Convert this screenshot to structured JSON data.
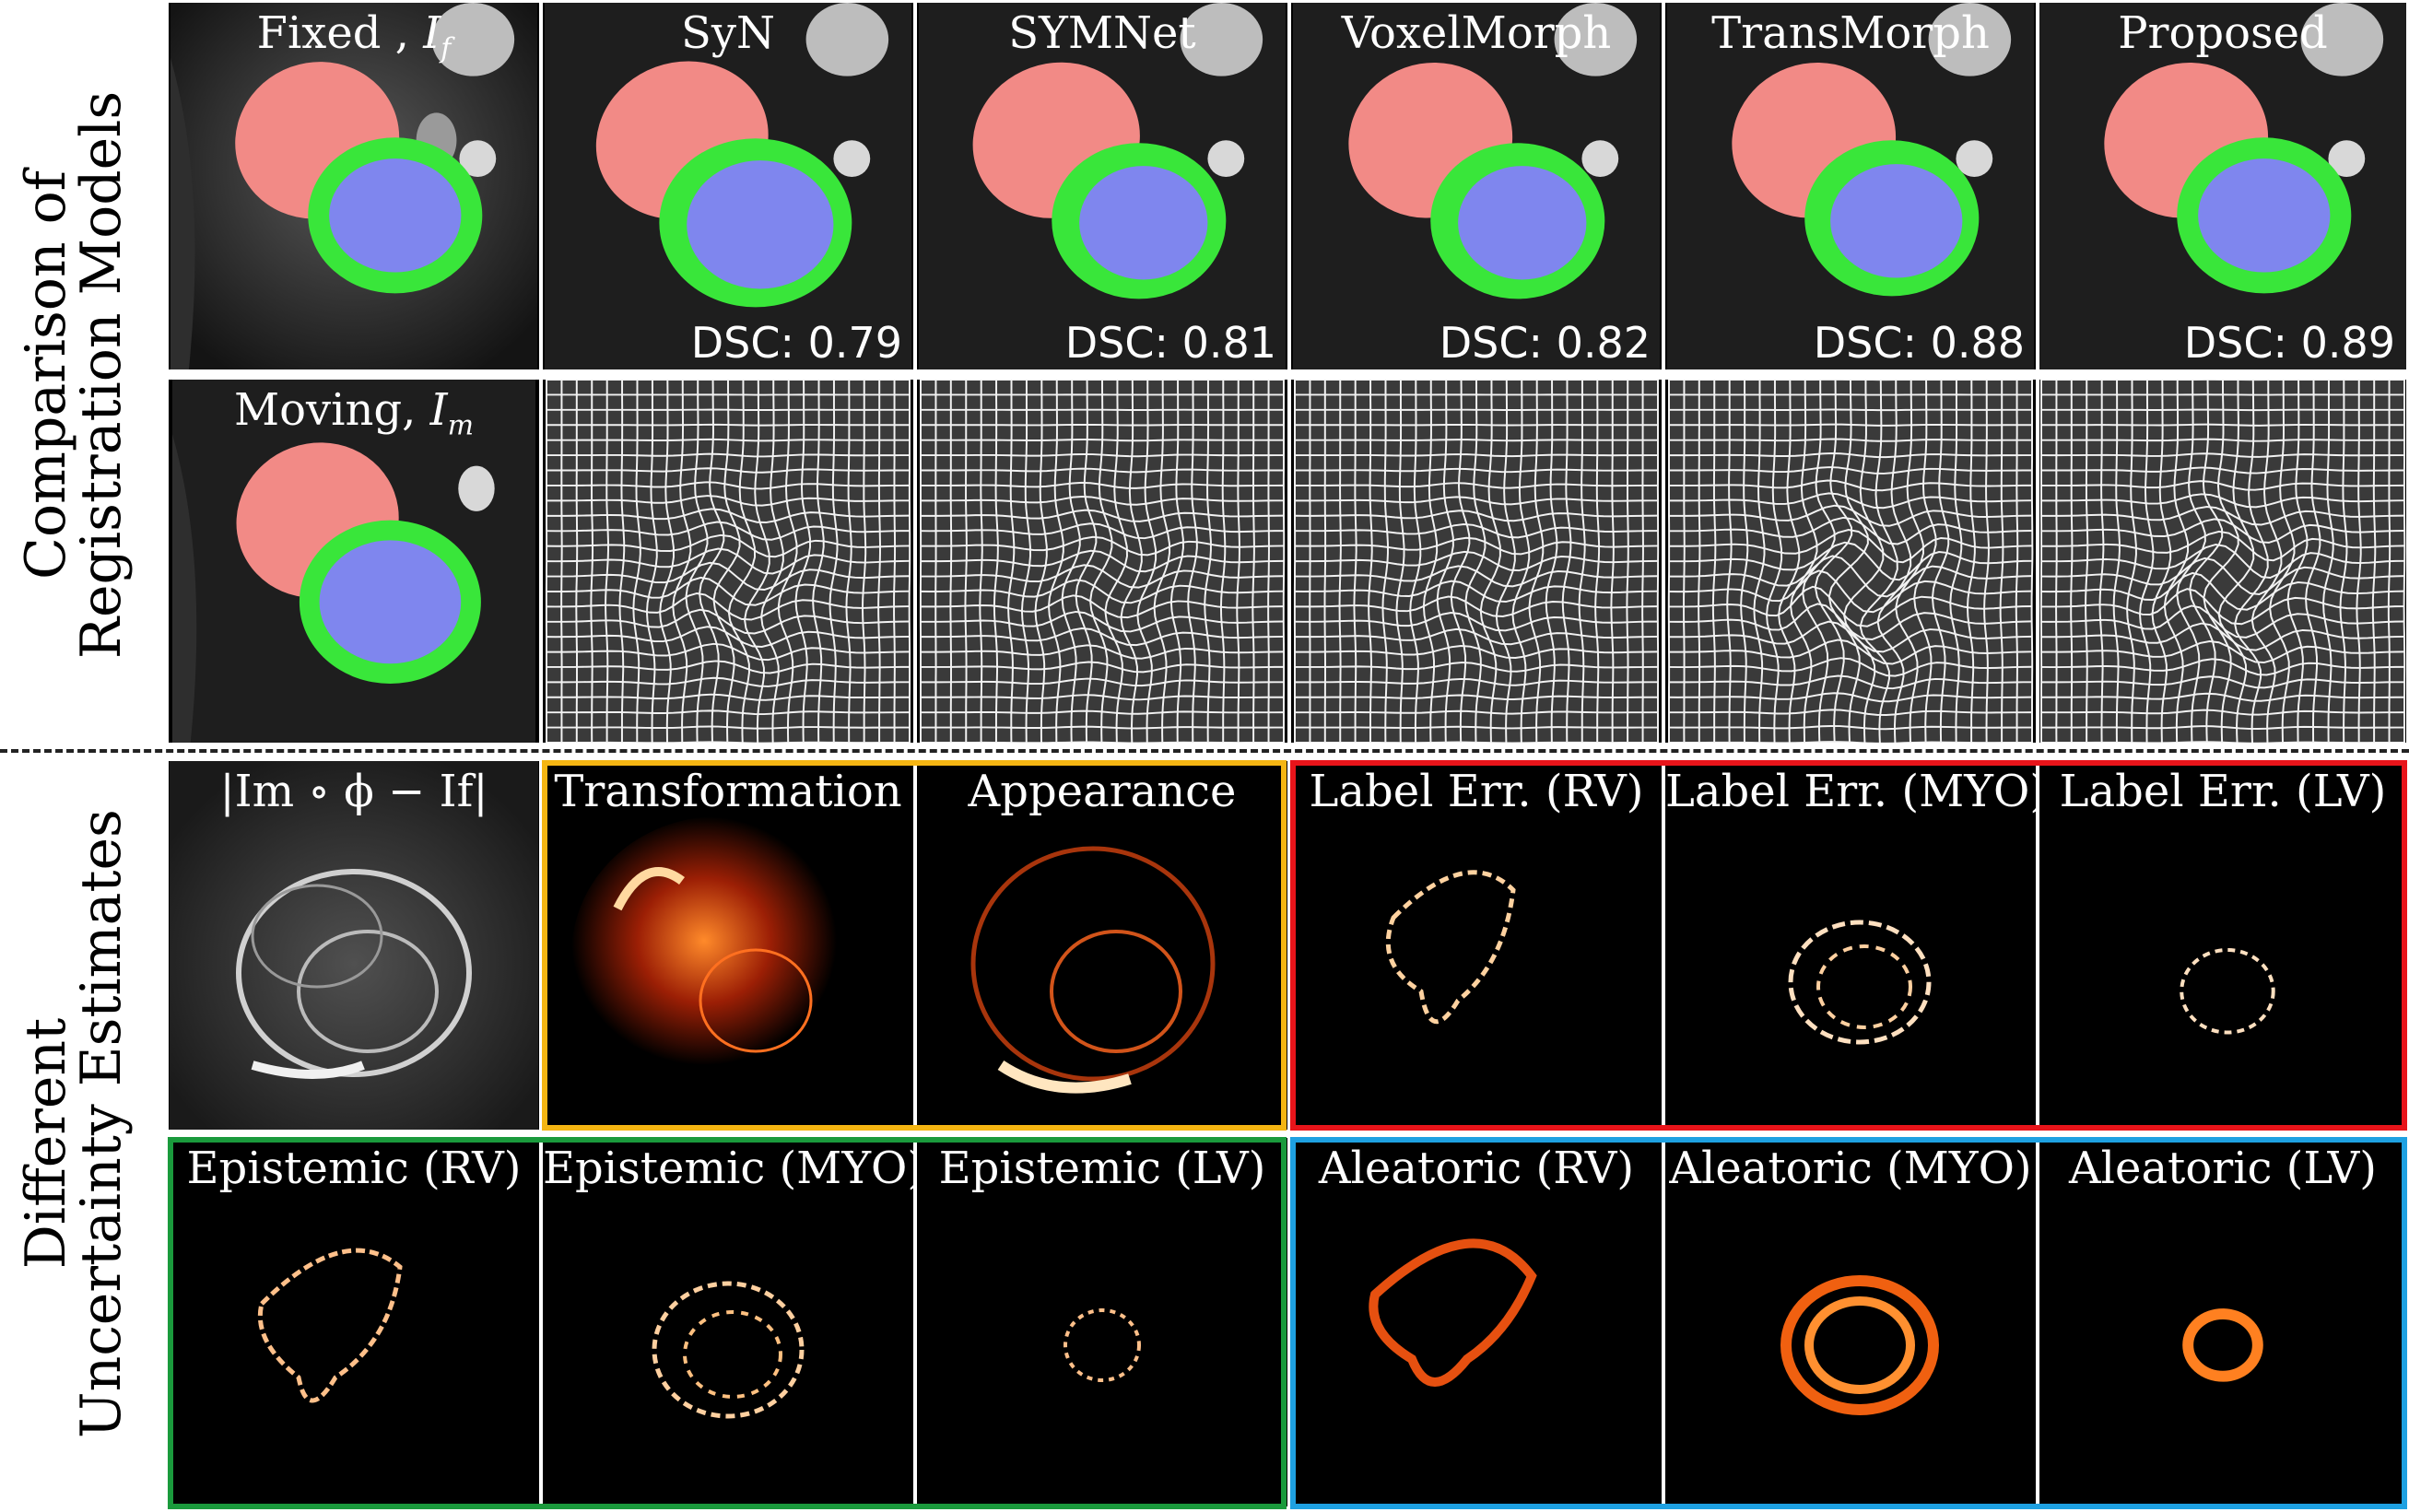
{
  "row_labels": {
    "top": [
      "Comparison of",
      "Registration Models"
    ],
    "bottom": [
      "Different",
      "Uncertainty Estimates"
    ]
  },
  "row1": [
    {
      "title": "Fixed , ",
      "sym": "I",
      "sub": "f",
      "dsc": ""
    },
    {
      "title": "SyN",
      "dsc": "DSC: 0.79"
    },
    {
      "title": "SYMNet",
      "dsc": "DSC: 0.81"
    },
    {
      "title": "VoxelMorph",
      "dsc": "DSC: 0.82"
    },
    {
      "title": "TransMorph",
      "dsc": "DSC: 0.88"
    },
    {
      "title": "Proposed",
      "dsc": "DSC: 0.89"
    }
  ],
  "row2": {
    "moving_title": "Moving, ",
    "sym": "I",
    "sub": "m"
  },
  "row3": [
    {
      "title": "|Im ∘ ϕ − If|"
    },
    {
      "title": "Transformation"
    },
    {
      "title": "Appearance"
    },
    {
      "title": "Label Err. (RV)"
    },
    {
      "title": "Label Err. (MYO)"
    },
    {
      "title": "Label Err. (LV)"
    }
  ],
  "row4": [
    {
      "title": "Epistemic (RV)"
    },
    {
      "title": "Epistemic (MYO)"
    },
    {
      "title": "Epistemic (LV)"
    },
    {
      "title": "Aleatoric (RV)"
    },
    {
      "title": "Aleatoric (MYO)"
    },
    {
      "title": "Aleatoric (LV)"
    }
  ],
  "colors": {
    "rv_overlay": "#f28a86",
    "myo_overlay": "#39e63a",
    "lv_overlay": "#7f86ee",
    "box_orange": "#f5b512",
    "box_red": "#e8141a",
    "box_green": "#1a9a3c",
    "box_blue": "#1ea1e2"
  }
}
